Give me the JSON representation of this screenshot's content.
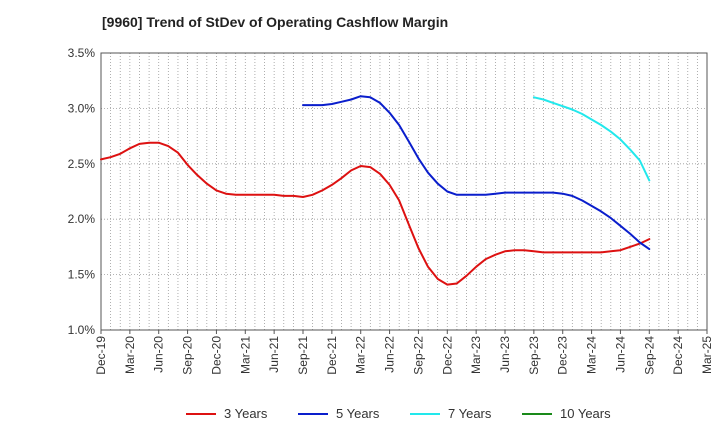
{
  "chart_data": {
    "type": "line",
    "title": "[9960]  Trend of StDev of Operating Cashflow Margin",
    "xlabel": "",
    "ylabel": "",
    "x_tick_labels": [
      "Dec-19",
      "Mar-20",
      "Jun-20",
      "Sep-20",
      "Dec-20",
      "Mar-21",
      "Jun-21",
      "Sep-21",
      "Dec-21",
      "Mar-22",
      "Jun-22",
      "Sep-22",
      "Dec-22",
      "Mar-23",
      "Jun-23",
      "Sep-23",
      "Dec-23",
      "Mar-24",
      "Jun-24",
      "Sep-24",
      "Dec-24",
      "Mar-25"
    ],
    "y_tick_labels": [
      "3.5%",
      "3.0%",
      "2.5%",
      "2.0%",
      "1.5%",
      "1.0%"
    ],
    "ylim": [
      1.0,
      3.5
    ],
    "y_unit": "%",
    "grid": true,
    "legend_position": "bottom",
    "series": [
      {
        "name": "3 Years",
        "color": "#dd1111",
        "x": [
          0,
          0.33,
          0.67,
          1,
          1.33,
          1.67,
          2,
          2.33,
          2.67,
          3,
          3.33,
          3.67,
          4,
          4.33,
          4.67,
          5,
          5.33,
          5.67,
          6,
          6.33,
          6.67,
          7,
          7.33,
          7.67,
          8,
          8.33,
          8.67,
          9,
          9.33,
          9.67,
          10,
          10.33,
          10.67,
          11,
          11.33,
          11.67,
          12,
          12.33,
          12.67,
          13,
          13.33,
          13.67,
          14,
          14.33,
          14.67,
          15,
          15.33,
          15.67,
          16,
          16.33,
          16.67,
          17,
          17.33,
          17.67,
          18,
          18.33,
          18.67,
          19
        ],
        "values": [
          2.54,
          2.56,
          2.59,
          2.64,
          2.68,
          2.69,
          2.69,
          2.66,
          2.6,
          2.49,
          2.4,
          2.32,
          2.26,
          2.23,
          2.22,
          2.22,
          2.22,
          2.22,
          2.22,
          2.21,
          2.21,
          2.2,
          2.22,
          2.26,
          2.31,
          2.37,
          2.44,
          2.48,
          2.47,
          2.41,
          2.31,
          2.17,
          1.95,
          1.74,
          1.57,
          1.46,
          1.41,
          1.42,
          1.49,
          1.57,
          1.64,
          1.68,
          1.71,
          1.72,
          1.72,
          1.71,
          1.7,
          1.7,
          1.7,
          1.7,
          1.7,
          1.7,
          1.7,
          1.71,
          1.72,
          1.75,
          1.78,
          1.82
        ]
      },
      {
        "name": "5 Years",
        "color": "#0a1ecc",
        "x": [
          7,
          7.33,
          7.67,
          8,
          8.33,
          8.67,
          9,
          9.33,
          9.67,
          10,
          10.33,
          10.67,
          11,
          11.33,
          11.67,
          12,
          12.33,
          12.67,
          13,
          13.33,
          13.67,
          14,
          14.33,
          14.67,
          15,
          15.33,
          15.67,
          16,
          16.33,
          16.67,
          17,
          17.33,
          17.67,
          18,
          18.33,
          18.67,
          19
        ],
        "values": [
          3.03,
          3.03,
          3.03,
          3.04,
          3.06,
          3.08,
          3.11,
          3.1,
          3.05,
          2.96,
          2.85,
          2.7,
          2.55,
          2.42,
          2.32,
          2.25,
          2.22,
          2.22,
          2.22,
          2.22,
          2.23,
          2.24,
          2.24,
          2.24,
          2.24,
          2.24,
          2.24,
          2.23,
          2.21,
          2.17,
          2.12,
          2.07,
          2.01,
          1.94,
          1.87,
          1.79,
          1.73
        ]
      },
      {
        "name": "7 Years",
        "color": "#22e8ec",
        "x": [
          15,
          15.33,
          15.67,
          16,
          16.33,
          16.67,
          17,
          17.33,
          17.67,
          18,
          18.33,
          18.67,
          19
        ],
        "values": [
          3.1,
          3.08,
          3.05,
          3.02,
          2.99,
          2.95,
          2.9,
          2.85,
          2.79,
          2.72,
          2.63,
          2.53,
          2.35
        ]
      },
      {
        "name": "10 Years",
        "color": "#1a8a1a",
        "x": [],
        "values": []
      }
    ]
  }
}
